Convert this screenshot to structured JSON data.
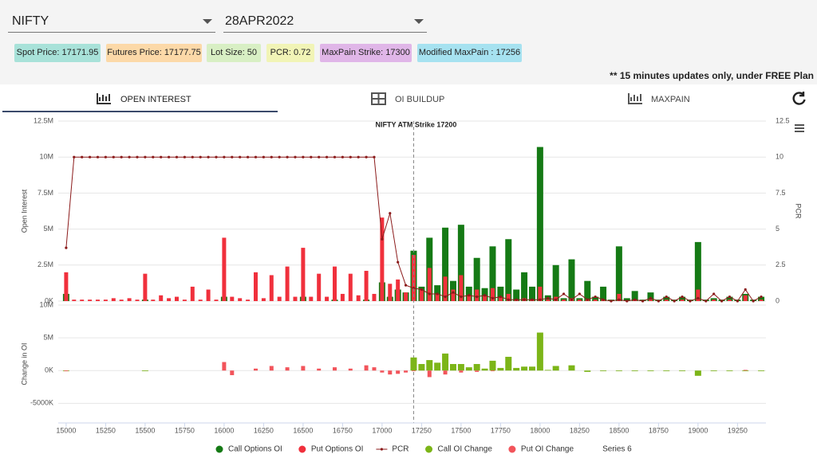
{
  "header": {
    "symbol": "NIFTY",
    "expiry": "28APR2022"
  },
  "badges": [
    "Spot Price: 17171.95",
    "Futures Price: 17177.75",
    "Lot Size: 50",
    "PCR: 0.72",
    "MaxPain Strike: 17300",
    "Modified MaxPain : 17256"
  ],
  "notice": "** 15 minutes updates only, under FREE Plan",
  "tabs": [
    "OPEN INTEREST",
    "OI BUILDUP",
    "MAXPAIN"
  ],
  "chart_data": [
    {
      "type": "bar",
      "annotation": {
        "x": 17200,
        "text": "NIFTY ATM Strike 17200"
      },
      "y_label": "Open Interest",
      "y2_label": "PCR",
      "x": [
        15000,
        15050,
        15100,
        15150,
        15200,
        15250,
        15300,
        15350,
        15400,
        15450,
        15500,
        15550,
        15600,
        15650,
        15700,
        15750,
        15800,
        15850,
        15900,
        15950,
        16000,
        16050,
        16100,
        16150,
        16200,
        16250,
        16300,
        16350,
        16400,
        16450,
        16500,
        16550,
        16600,
        16650,
        16700,
        16750,
        16800,
        16850,
        16900,
        16950,
        17000,
        17050,
        17100,
        17150,
        17200,
        17250,
        17300,
        17350,
        17400,
        17450,
        17500,
        17550,
        17600,
        17650,
        17700,
        17750,
        17800,
        17850,
        17900,
        17950,
        18000,
        18050,
        18100,
        18150,
        18200,
        18250,
        18300,
        18350,
        18400,
        18450,
        18500,
        18550,
        18600,
        18650,
        18700,
        18750,
        18800,
        18850,
        18900,
        18950,
        19000,
        19050,
        19100,
        19150,
        19200,
        19250,
        19300,
        19350,
        19400
      ],
      "xlim": [
        14950,
        19430
      ],
      "ylim": [
        0,
        12500000
      ],
      "yticks": [
        {
          "value": 0,
          "label": "0K"
        },
        {
          "value": 2500000,
          "label": "2.5M"
        },
        {
          "value": 5000000,
          "label": "5M"
        },
        {
          "value": 7500000,
          "label": "7.5M"
        },
        {
          "value": 10000000,
          "label": "10M"
        },
        {
          "value": 12500000,
          "label": "12.5M"
        }
      ],
      "y2lim": [
        0,
        12.5
      ],
      "y2ticks": [
        0,
        2.5,
        5,
        7.5,
        10,
        12.5
      ],
      "grid": true,
      "series": [
        {
          "name": "Call Options OI",
          "color": "#157a15",
          "values": [
            500000,
            0,
            0,
            0,
            0,
            0,
            0,
            0,
            0,
            0,
            100000,
            0,
            0,
            0,
            0,
            0,
            0,
            0,
            0,
            0,
            300000,
            0,
            0,
            0,
            0,
            0,
            0,
            0,
            0,
            0,
            300000,
            0,
            0,
            0,
            100000,
            0,
            0,
            0,
            100000,
            0,
            1300000,
            300000,
            800000,
            600000,
            3500000,
            1000000,
            4400000,
            1100000,
            5100000,
            1400000,
            5300000,
            1000000,
            3000000,
            900000,
            3800000,
            1000000,
            4300000,
            800000,
            2000000,
            1000000,
            10700000,
            400000,
            2500000,
            200000,
            2900000,
            200000,
            1400000,
            300000,
            1000000,
            100000,
            3800000,
            200000,
            700000,
            100000,
            600000,
            100000,
            300000,
            100000,
            300000,
            100000,
            4100000,
            100000,
            200000,
            100000,
            300000,
            100000,
            500000,
            100000,
            300000
          ]
        },
        {
          "name": "Put Options OI",
          "color": "#f0303c",
          "values": [
            2000000,
            100000,
            100000,
            100000,
            100000,
            100000,
            200000,
            100000,
            200000,
            100000,
            1900000,
            100000,
            400000,
            200000,
            300000,
            100000,
            1000000,
            100000,
            800000,
            100000,
            4400000,
            300000,
            200000,
            100000,
            2000000,
            200000,
            1800000,
            300000,
            2400000,
            300000,
            3700000,
            300000,
            1900000,
            300000,
            2400000,
            500000,
            1900000,
            400000,
            2100000,
            500000,
            5800000,
            1200000,
            1500000,
            600000,
            3200000,
            800000,
            2300000,
            500000,
            1700000,
            800000,
            1800000,
            400000,
            800000,
            400000,
            900000,
            300000,
            500000,
            100000,
            200000,
            100000,
            1000000,
            100000,
            300000,
            100000,
            200000,
            100000,
            100000,
            100000,
            100000,
            0,
            500000,
            0,
            100000,
            0,
            100000,
            0,
            100000,
            0,
            100000,
            0,
            800000,
            0,
            100000,
            0,
            100000,
            0,
            400000,
            0,
            100000
          ]
        },
        {
          "name": "PCR",
          "color": "#8b1a1a",
          "type": "line",
          "axis": "y2",
          "values": [
            3.7,
            10,
            10,
            10,
            10,
            10,
            10,
            10,
            10,
            10,
            10,
            10,
            10,
            10,
            10,
            10,
            10,
            10,
            10,
            10,
            10,
            10,
            10,
            10,
            10,
            10,
            10,
            10,
            10,
            10,
            10,
            10,
            10,
            10,
            10,
            10,
            10,
            10,
            10,
            10,
            4.3,
            6.1,
            2.7,
            1.1,
            0.9,
            0.8,
            0.5,
            0.5,
            0.3,
            0.6,
            0.3,
            0.4,
            0.3,
            0.4,
            0.2,
            0.3,
            0.1,
            0.1,
            0.1,
            0.1,
            0.1,
            0.2,
            0.1,
            0.5,
            0.1,
            0.5,
            0.1,
            0.3,
            0.1,
            0,
            0.1,
            0,
            0.1,
            0,
            0.2,
            0,
            0.3,
            0,
            0.3,
            0,
            0.2,
            0,
            0.5,
            0,
            0.3,
            0,
            0.8,
            0,
            0.3
          ]
        }
      ]
    },
    {
      "type": "bar",
      "y_label": "Change in OI",
      "x": [
        15000,
        15050,
        15100,
        15150,
        15200,
        15250,
        15300,
        15350,
        15400,
        15450,
        15500,
        15550,
        15600,
        15650,
        15700,
        15750,
        15800,
        15850,
        15900,
        15950,
        16000,
        16050,
        16100,
        16150,
        16200,
        16250,
        16300,
        16350,
        16400,
        16450,
        16500,
        16550,
        16600,
        16650,
        16700,
        16750,
        16800,
        16850,
        16900,
        16950,
        17000,
        17050,
        17100,
        17150,
        17200,
        17250,
        17300,
        17350,
        17400,
        17450,
        17500,
        17550,
        17600,
        17650,
        17700,
        17750,
        17800,
        17850,
        17900,
        17950,
        18000,
        18050,
        18100,
        18150,
        18200,
        18250,
        18300,
        18350,
        18400,
        18450,
        18500,
        18550,
        18600,
        18650,
        18700,
        18750,
        18800,
        18850,
        18900,
        18950,
        19000,
        19050,
        19100,
        19150,
        19200,
        19250,
        19300,
        19350,
        19400
      ],
      "xlim": [
        14950,
        19430
      ],
      "xticks": [
        15000,
        15250,
        15500,
        15750,
        16000,
        16250,
        16500,
        16750,
        17000,
        17250,
        17500,
        17750,
        18000,
        18250,
        18500,
        18750,
        19000,
        19250
      ],
      "ylim": [
        -8000000,
        10000000
      ],
      "yticks": [
        {
          "value": -5000000,
          "label": "-5000K"
        },
        {
          "value": 0,
          "label": "0K"
        },
        {
          "value": 5000000,
          "label": "5M"
        },
        {
          "value": 10000000,
          "label": "10M"
        }
      ],
      "grid": true,
      "series": [
        {
          "name": "Call OI Change",
          "color": "#7cb518",
          "values": [
            -100000,
            0,
            0,
            0,
            0,
            0,
            0,
            0,
            0,
            0,
            -100000,
            0,
            0,
            0,
            0,
            0,
            0,
            0,
            0,
            0,
            0,
            0,
            0,
            0,
            0,
            0,
            0,
            0,
            0,
            0,
            0,
            0,
            0,
            0,
            0,
            0,
            0,
            0,
            0,
            0,
            0,
            0,
            0,
            0,
            2000000,
            1000000,
            1600000,
            1200000,
            2600000,
            1000000,
            1000000,
            500000,
            1000000,
            300000,
            1500000,
            400000,
            2100000,
            400000,
            600000,
            600000,
            5800000,
            100000,
            700000,
            0,
            800000,
            0,
            -200000,
            0,
            -100000,
            0,
            -100000,
            0,
            -100000,
            0,
            -100000,
            0,
            -100000,
            0,
            -100000,
            0,
            -800000,
            0,
            -100000,
            0,
            -100000,
            0,
            -100000,
            0,
            -100000
          ]
        },
        {
          "name": "Put OI Change",
          "color": "#f2545b",
          "values": [
            -100000,
            0,
            0,
            0,
            0,
            0,
            0,
            0,
            0,
            0,
            0,
            0,
            0,
            0,
            0,
            0,
            0,
            0,
            0,
            0,
            1300000,
            -700000,
            0,
            0,
            300000,
            0,
            700000,
            0,
            500000,
            0,
            700000,
            0,
            300000,
            0,
            500000,
            0,
            300000,
            0,
            800000,
            500000,
            -300000,
            -600000,
            -500000,
            -300000,
            -100000,
            0,
            -1000000,
            0,
            -600000,
            0,
            -300000,
            0,
            -200000,
            0,
            -100000,
            0,
            0,
            0,
            0,
            0,
            0,
            0,
            0,
            0,
            0,
            0,
            0,
            0,
            0,
            0,
            0,
            0,
            0,
            0,
            0,
            0,
            0,
            0,
            0,
            0,
            0,
            0,
            0,
            0,
            0,
            0,
            100000,
            0,
            0
          ]
        },
        {
          "name": "Series 6"
        }
      ]
    }
  ]
}
